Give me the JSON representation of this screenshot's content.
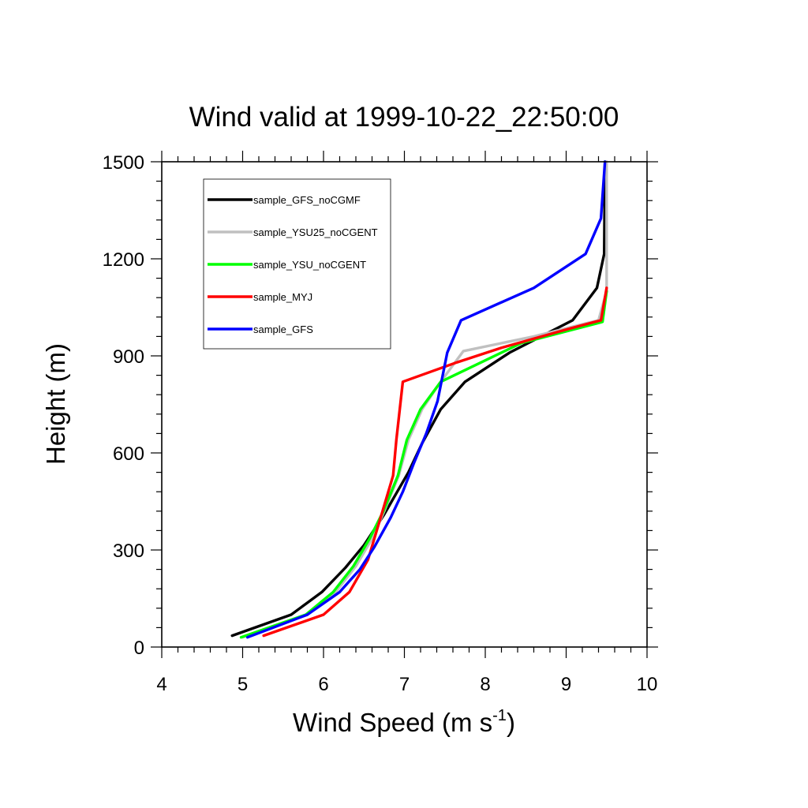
{
  "chart_data": {
    "type": "line",
    "title": "Wind valid at 1999-10-22_22:50:00",
    "xlabel": {
      "text": "Wind Speed (m s",
      "sup": "-1",
      "close": ")"
    },
    "ylabel": "Height (m)",
    "xlim": [
      4,
      10
    ],
    "ylim": [
      0,
      1500
    ],
    "xticks": [
      4,
      5,
      6,
      7,
      8,
      9,
      10
    ],
    "yticks": [
      0,
      300,
      600,
      900,
      1200,
      1500
    ],
    "xtick_labels": [
      "4",
      "5",
      "6",
      "7",
      "8",
      "9",
      "10"
    ],
    "ytick_labels": [
      "0",
      "300",
      "600",
      "900",
      "1200",
      "1500"
    ],
    "grid": false,
    "legend_position": "top-left",
    "series": [
      {
        "name": "sample_GFS_noCGMF",
        "color": "#000000",
        "points": [
          [
            4.87,
            35
          ],
          [
            5.6,
            100
          ],
          [
            5.98,
            170
          ],
          [
            6.27,
            245
          ],
          [
            6.5,
            315
          ],
          [
            6.75,
            410
          ],
          [
            7.05,
            540
          ],
          [
            7.22,
            630
          ],
          [
            7.45,
            735
          ],
          [
            7.75,
            820
          ],
          [
            8.3,
            910
          ],
          [
            9.08,
            1010
          ],
          [
            9.38,
            1110
          ],
          [
            9.47,
            1215
          ],
          [
            9.48,
            1500
          ]
        ]
      },
      {
        "name": "sample_YSU25_noCGENT",
        "color": "#c0c0c0",
        "points": [
          [
            5.0,
            30
          ],
          [
            5.8,
            100
          ],
          [
            6.15,
            170
          ],
          [
            6.4,
            250
          ],
          [
            6.6,
            335
          ],
          [
            6.75,
            420
          ],
          [
            6.93,
            530
          ],
          [
            7.05,
            640
          ],
          [
            7.22,
            735
          ],
          [
            7.45,
            820
          ],
          [
            7.73,
            915
          ],
          [
            8.6,
            960
          ],
          [
            9.4,
            1010
          ],
          [
            9.5,
            1100
          ],
          [
            9.5,
            1500
          ]
        ]
      },
      {
        "name": "sample_YSU_noCGENT",
        "color": "#00ff00",
        "points": [
          [
            4.98,
            30
          ],
          [
            5.78,
            100
          ],
          [
            6.12,
            170
          ],
          [
            6.37,
            250
          ],
          [
            6.57,
            335
          ],
          [
            6.74,
            420
          ],
          [
            6.92,
            530
          ],
          [
            7.03,
            640
          ],
          [
            7.2,
            735
          ],
          [
            7.45,
            820
          ],
          [
            8.45,
            940
          ],
          [
            9.45,
            1005
          ],
          [
            9.5,
            1100
          ]
        ]
      },
      {
        "name": "sample_MYJ",
        "color": "#ff0000",
        "points": [
          [
            5.26,
            35
          ],
          [
            6.0,
            100
          ],
          [
            6.32,
            170
          ],
          [
            6.55,
            270
          ],
          [
            6.73,
            420
          ],
          [
            6.86,
            530
          ],
          [
            6.9,
            640
          ],
          [
            6.98,
            820
          ],
          [
            7.65,
            880
          ],
          [
            8.2,
            925
          ],
          [
            9.05,
            985
          ],
          [
            9.43,
            1010
          ],
          [
            9.5,
            1110
          ]
        ]
      },
      {
        "name": "sample_GFS",
        "color": "#0000ff",
        "points": [
          [
            5.06,
            30
          ],
          [
            5.8,
            100
          ],
          [
            6.2,
            170
          ],
          [
            6.45,
            240
          ],
          [
            6.63,
            310
          ],
          [
            6.83,
            400
          ],
          [
            6.98,
            480
          ],
          [
            7.12,
            570
          ],
          [
            7.27,
            660
          ],
          [
            7.41,
            760
          ],
          [
            7.53,
            910
          ],
          [
            7.7,
            1010
          ],
          [
            8.6,
            1110
          ],
          [
            9.24,
            1215
          ],
          [
            9.43,
            1325
          ],
          [
            9.48,
            1500
          ]
        ]
      }
    ]
  }
}
